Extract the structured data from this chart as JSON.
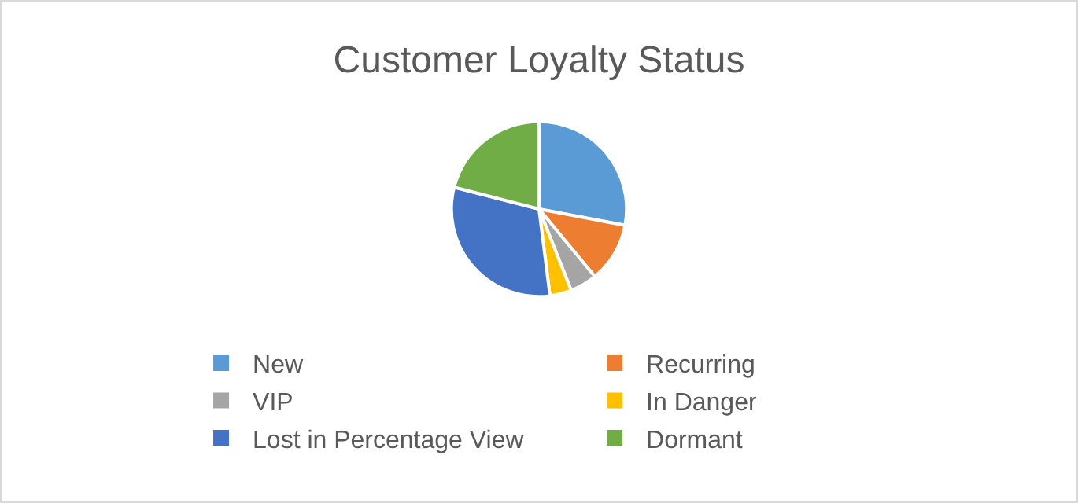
{
  "chart_data": {
    "type": "pie",
    "title": "Customer Loyalty Status",
    "categories": [
      "New",
      "Recurring",
      "VIP",
      "In Danger",
      "Lost in Percentage View",
      "Dormant"
    ],
    "values": [
      28,
      11,
      5,
      4,
      31,
      21
    ],
    "colors": [
      "#5b9bd5",
      "#ed7d31",
      "#a5a5a5",
      "#ffc000",
      "#4472c4",
      "#70ad47"
    ],
    "legend": "bottom"
  }
}
